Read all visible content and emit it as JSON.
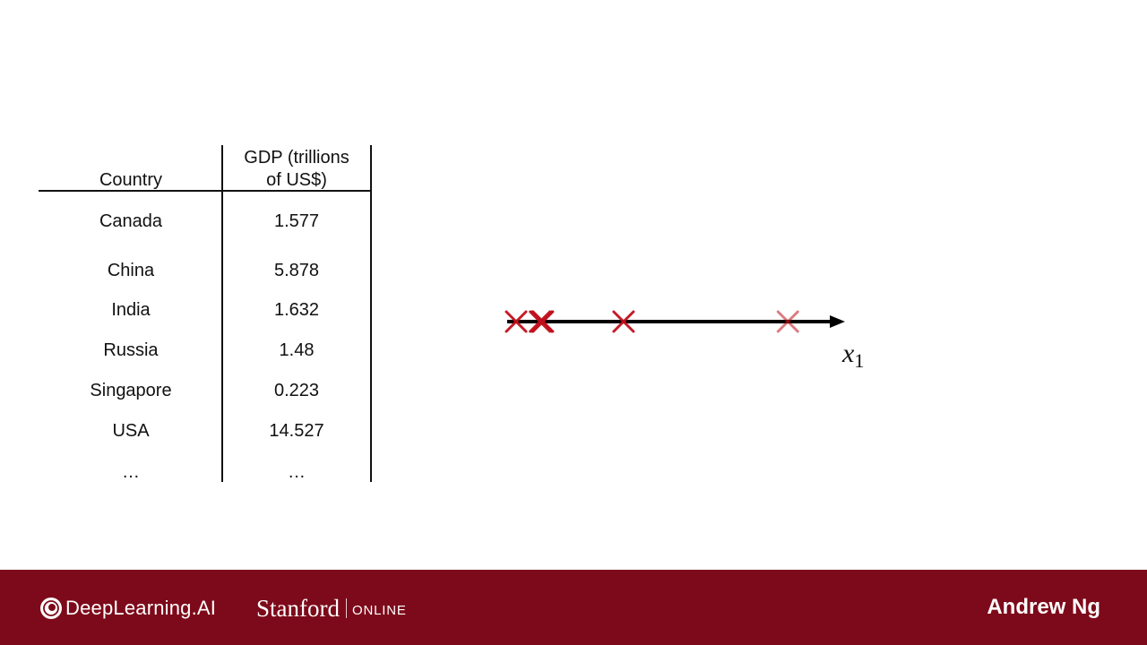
{
  "table": {
    "headers": [
      "Country",
      "GDP (trillions\nof US$)"
    ],
    "header_country": "Country",
    "header_gdp_line1": "GDP (trillions",
    "header_gdp_line2": "of US$)",
    "rows": [
      {
        "country": "Canada",
        "gdp": "1.577"
      },
      {
        "country": "China",
        "gdp": "5.878"
      },
      {
        "country": "India",
        "gdp": "1.632"
      },
      {
        "country": "Russia",
        "gdp": "1.48"
      },
      {
        "country": "Singapore",
        "gdp": "0.223"
      },
      {
        "country": "USA",
        "gdp": "14.527"
      },
      {
        "country": "…",
        "gdp": "…"
      }
    ]
  },
  "chart_data": {
    "type": "scatter",
    "title": "",
    "xlabel": "x",
    "xlabel_subscript": "1",
    "ylabel": "",
    "points": [
      {
        "x": 0.223,
        "y": 0
      },
      {
        "x": 1.48,
        "y": 0
      },
      {
        "x": 1.577,
        "y": 0
      },
      {
        "x": 1.632,
        "y": 0
      },
      {
        "x": 5.878,
        "y": 0
      },
      {
        "x": 14.527,
        "y": 0
      }
    ],
    "grid": false,
    "marker": "x",
    "marker_color": "#c0101c"
  },
  "footer": {
    "background": "#7d0a1a",
    "deeplearning_label": "DeepLearning.AI",
    "stanford_label": "Stanford",
    "online_label": "ONLINE",
    "presenter": "Andrew Ng"
  }
}
